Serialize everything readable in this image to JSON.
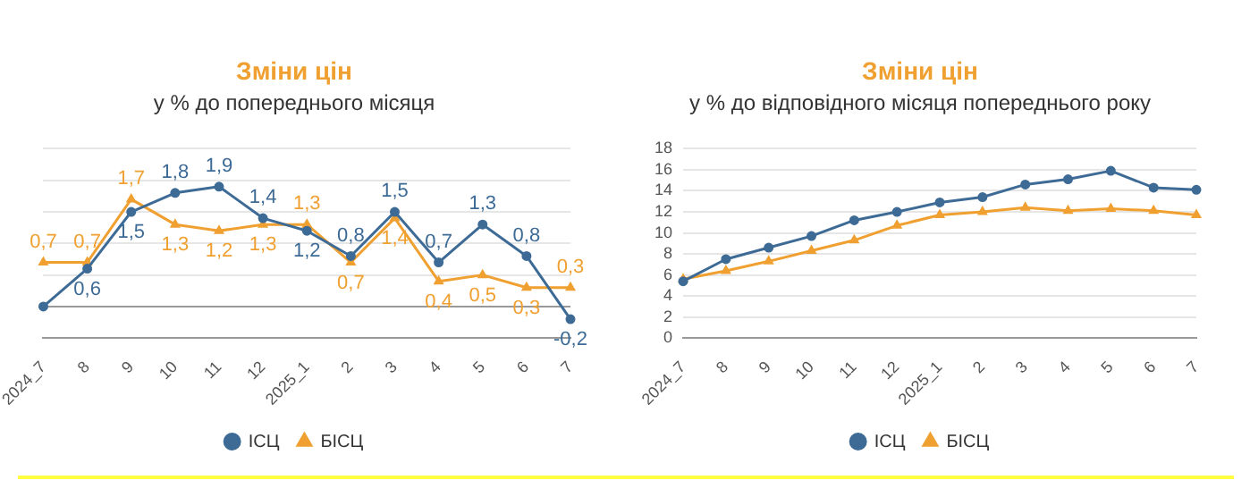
{
  "chart_data": [
    {
      "type": "line",
      "title": "Зміни цін",
      "subtitle": "у % до попереднього місяця",
      "categories": [
        "2024_7",
        "8",
        "9",
        "10",
        "11",
        "12",
        "2025_1",
        "2",
        "3",
        "4",
        "5",
        "6",
        "7"
      ],
      "series": [
        {
          "name": "ІСЦ",
          "color": "#3d6b96",
          "marker": "circle",
          "values": [
            0,
            0.6,
            1.5,
            1.8,
            1.9,
            1.4,
            1.2,
            0.8,
            1.5,
            0.7,
            1.3,
            0.8,
            -0.2
          ],
          "value_labels": [
            null,
            "0,6",
            "1,5",
            "1,8",
            "1,9",
            "1,4",
            "1,2",
            "0,8",
            "1,5",
            "0,7",
            "1,3",
            "0,8",
            "-0,2"
          ]
        },
        {
          "name": "БІСЦ",
          "color": "#f0a030",
          "marker": "triangle",
          "values": [
            0.7,
            0.7,
            1.7,
            1.3,
            1.2,
            1.3,
            1.3,
            0.7,
            1.4,
            0.4,
            0.5,
            0.3,
            0.3
          ],
          "value_labels": [
            "0,7",
            "0,7",
            "1,7",
            "1,3",
            "1,2",
            "1,3",
            "1,3",
            "0,7",
            "1,4",
            "0,4",
            "0,5",
            "0,3",
            "0,3"
          ]
        }
      ],
      "ylim": [
        -0.5,
        2.5
      ],
      "yticks": [
        {
          "value": -0.5,
          "label": null
        },
        {
          "value": 0,
          "label": null
        },
        {
          "value": 0.5,
          "label": null
        },
        {
          "value": 1,
          "label": null
        },
        {
          "value": 1.5,
          "label": null
        },
        {
          "value": 2,
          "label": null
        },
        {
          "value": 2.5,
          "label": null
        }
      ],
      "tick_labels": "x",
      "grid": "y",
      "legend": "bottom"
    },
    {
      "type": "line",
      "title": "Зміни цін",
      "subtitle": "у % до відповідного місяця попереднього року",
      "categories": [
        "2024_7",
        "8",
        "9",
        "10",
        "11",
        "12",
        "2025_1",
        "2",
        "3",
        "4",
        "5",
        "6",
        "7"
      ],
      "series": [
        {
          "name": "ІСЦ",
          "color": "#3d6b96",
          "marker": "circle",
          "values": [
            5.4,
            7.5,
            8.6,
            9.7,
            11.2,
            12.0,
            12.9,
            13.4,
            14.6,
            15.1,
            15.9,
            14.3,
            14.1
          ]
        },
        {
          "name": "БІСЦ",
          "color": "#f0a030",
          "marker": "triangle",
          "values": [
            5.6,
            6.4,
            7.3,
            8.3,
            9.3,
            10.7,
            11.7,
            12.0,
            12.4,
            12.1,
            12.3,
            12.1,
            11.7
          ]
        }
      ],
      "ylim": [
        0,
        18
      ],
      "yticks": [
        0,
        2,
        4,
        6,
        8,
        10,
        12,
        14,
        16,
        18
      ],
      "grid": "y",
      "legend": "bottom"
    }
  ]
}
